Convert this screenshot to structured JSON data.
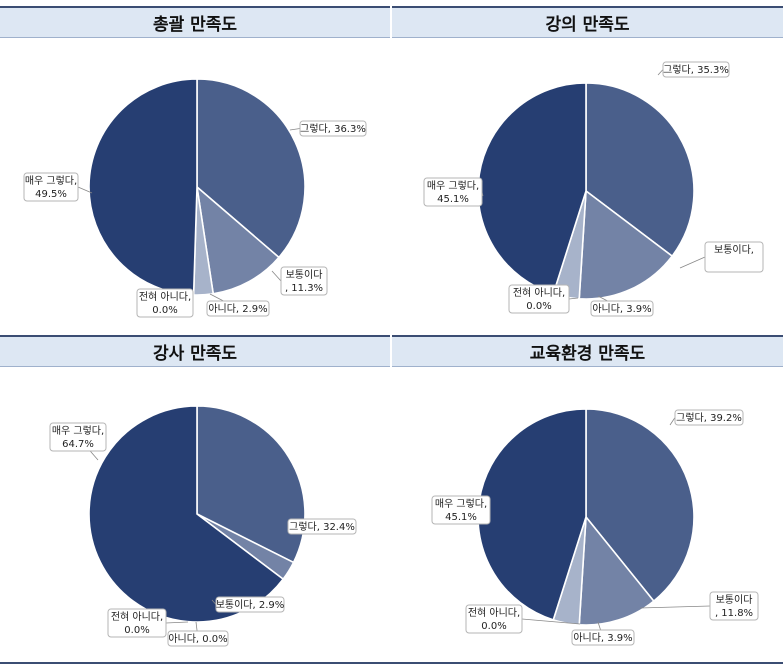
{
  "colors": {
    "very_satisfied": "#263e72",
    "satisfied": "#4a5f8b",
    "neutral": "#7383a6",
    "dissatisfied": "#a7b3ca",
    "not_at_all": "#c9d2e2",
    "header_bg": "#dde7f3",
    "header_border": "#3b4d73"
  },
  "chart_data": [
    {
      "type": "pie",
      "title": "총괄 만족도",
      "categories": [
        "그렇다",
        "보통이다",
        "아니다",
        "전혀 아니다",
        "매우 그렇다"
      ],
      "values": [
        36.3,
        11.3,
        2.9,
        0.0,
        49.5
      ],
      "labels": [
        [
          "그렇다, 36.3%"
        ],
        [
          "보통이다",
          ", 11.3%"
        ],
        [
          "아니다, 2.9%"
        ],
        [
          "전혀 아니다,",
          "0.0%"
        ],
        [
          "매우 그렇다,",
          "49.5%"
        ]
      ]
    },
    {
      "type": "pie",
      "title": "강의 만족도",
      "categories": [
        "그렇다",
        "보통이다",
        "아니다",
        "전혀 아니다",
        "매우 그렇다"
      ],
      "values": [
        35.3,
        15.7,
        3.9,
        0.0,
        45.1
      ],
      "labels": [
        [
          "그렇다, 35.3%"
        ],
        [
          "보통이다,"
        ],
        [
          "아니다, 3.9%"
        ],
        [
          "전혀 아니다,",
          "0.0%"
        ],
        [
          "매우 그렇다,",
          "45.1%"
        ]
      ]
    },
    {
      "type": "pie",
      "title": "강사 만족도",
      "categories": [
        "그렇다",
        "보통이다",
        "아니다",
        "전혀 아니다",
        "매우 그렇다"
      ],
      "values": [
        32.4,
        2.9,
        0.0,
        0.0,
        64.7
      ],
      "labels": [
        [
          "그렇다, 32.4%"
        ],
        [
          "보통이다, 2.9%"
        ],
        [
          "아니다, 0.0%"
        ],
        [
          "전혀 아니다,",
          "0.0%"
        ],
        [
          "매우 그렇다,",
          "64.7%"
        ]
      ]
    },
    {
      "type": "pie",
      "title": "교육환경 만족도",
      "categories": [
        "그렇다",
        "보통이다",
        "아니다",
        "전혀 아니다",
        "매우 그렇다"
      ],
      "values": [
        39.2,
        11.8,
        3.9,
        0.0,
        45.1
      ],
      "labels": [
        [
          "그렇다, 39.2%"
        ],
        [
          "보통이다",
          ", 11.8%"
        ],
        [
          "아니다, 3.9%"
        ],
        [
          "전혀 아니다,",
          "0.0%"
        ],
        [
          "매우 그렇다,",
          "45.1%"
        ]
      ]
    }
  ]
}
